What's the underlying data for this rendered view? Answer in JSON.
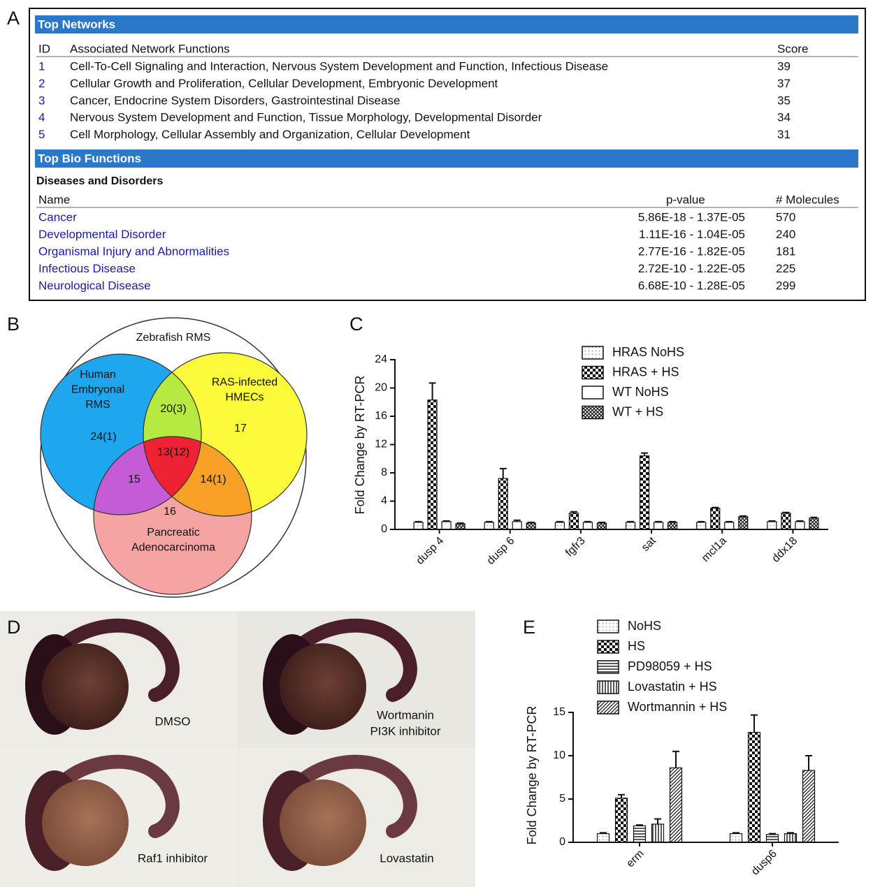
{
  "panel_labels": [
    "A",
    "B",
    "C",
    "D",
    "E"
  ],
  "networks": {
    "title": "Top Networks",
    "columns": [
      "ID",
      "Associated Network Functions",
      "Score"
    ],
    "rows": [
      [
        1,
        "Cell-To-Cell Signaling and Interaction, Nervous System Development and Function, Infectious Disease",
        39
      ],
      [
        2,
        "Cellular Growth and Proliferation, Cellular Development, Embryonic Development",
        37
      ],
      [
        3,
        "Cancer, Endocrine System Disorders, Gastrointestinal Disease",
        35
      ],
      [
        4,
        "Nervous System Development and Function, Tissue Morphology, Developmental Disorder",
        34
      ],
      [
        5,
        "Cell Morphology, Cellular Assembly and Organization, Cellular Development",
        31
      ]
    ]
  },
  "bio_functions": {
    "title": "Top Bio Functions",
    "subtitle": "Diseases and Disorders",
    "columns": [
      "Name",
      "p-value",
      "# Molecules"
    ],
    "rows": [
      [
        "Cancer",
        "5.86E-18 - 1.37E-05",
        570
      ],
      [
        "Developmental Disorder",
        "1.11E-16 - 1.04E-05",
        240
      ],
      [
        "Organismal Injury and Abnormalities",
        "2.77E-16 - 1.82E-05",
        181
      ],
      [
        "Infectious Disease",
        "2.72E-10 - 1.22E-05",
        225
      ],
      [
        "Neurological Disease",
        "6.68E-10 - 1.28E-05",
        299
      ]
    ]
  },
  "venn": {
    "title": "Zebrafish RMS",
    "sets": [
      [
        "Human",
        "Embryonal",
        "RMS"
      ],
      [
        "RAS-infected",
        "HMECs"
      ],
      [
        "Pancreatic",
        "Adenocarcinoma"
      ]
    ],
    "regions": [
      "24(1)",
      "20(3)",
      "17",
      "13(12)",
      "15",
      "14(1)",
      "16"
    ]
  },
  "images": [
    [
      "DMSO"
    ],
    [
      "Wortmanin",
      "PI3K inhibitor"
    ],
    [
      "Raf1 inhibitor"
    ],
    [
      "Lovastatin"
    ]
  ],
  "chart_data": [
    {
      "type": "bar",
      "ylabel": "Fold Change by RT-PCR",
      "categories": [
        "dusp 4",
        "dusp 6",
        "fgfr3",
        "sat",
        "mcl1a",
        "ddx18"
      ],
      "series": [
        {
          "name": "HRAS NoHS",
          "pattern": "dots",
          "values": [
            1.0,
            1.0,
            1.0,
            1.0,
            1.0,
            1.1
          ],
          "errors": [
            0.1,
            0.1,
            0.1,
            0.1,
            0.1,
            0.1
          ]
        },
        {
          "name": "HRAS + HS",
          "pattern": "checker",
          "values": [
            18.3,
            7.2,
            2.3,
            10.4,
            3.0,
            2.3
          ],
          "errors": [
            2.4,
            1.4,
            0.2,
            0.4,
            0.1,
            0.1
          ]
        },
        {
          "name": "WT NoHS",
          "pattern": "none",
          "values": [
            1.1,
            1.1,
            1.0,
            1.0,
            1.0,
            1.1
          ],
          "errors": [
            0.1,
            0.2,
            0.1,
            0.1,
            0.1,
            0.1
          ]
        },
        {
          "name": "WT + HS",
          "pattern": "crosshatch",
          "values": [
            0.8,
            0.9,
            0.9,
            1.0,
            1.8,
            1.6
          ],
          "errors": [
            0.1,
            0.1,
            0.1,
            0.1,
            0.1,
            0.1
          ]
        }
      ],
      "ylim": [
        0,
        24
      ],
      "yticks": [
        0,
        4,
        8,
        12,
        16,
        20,
        24
      ]
    },
    {
      "type": "bar",
      "ylabel": "Fold Change by RT-PCR",
      "categories": [
        "erm",
        "dusp6"
      ],
      "series": [
        {
          "name": "NoHS",
          "pattern": "dots",
          "values": [
            1.0,
            1.0
          ],
          "errors": [
            0.1,
            0.1
          ]
        },
        {
          "name": "HS",
          "pattern": "checker",
          "values": [
            5.1,
            12.7
          ],
          "errors": [
            0.4,
            2.0
          ]
        },
        {
          "name": "PD98059 + HS",
          "pattern": "hlines",
          "values": [
            1.9,
            0.9
          ],
          "errors": [
            0.1,
            0.1
          ]
        },
        {
          "name": "Lovastatin + HS",
          "pattern": "vlines",
          "values": [
            2.1,
            1.0
          ],
          "errors": [
            0.6,
            0.1
          ]
        },
        {
          "name": "Wortmannin + HS",
          "pattern": "diagonal",
          "values": [
            8.6,
            8.3
          ],
          "errors": [
            1.9,
            1.7
          ]
        }
      ],
      "ylim": [
        0,
        15
      ],
      "yticks": [
        0,
        5,
        10,
        15
      ]
    }
  ]
}
